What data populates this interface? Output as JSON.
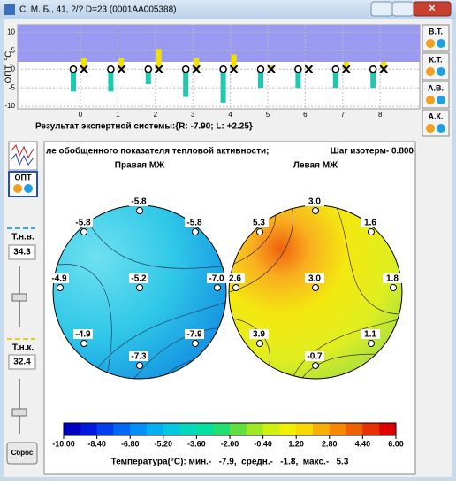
{
  "window": {
    "title": "С. М. Б., 41, ?/? D=23 (0001AA005388)"
  },
  "top_chart": {
    "type": "bar",
    "ylabel": "ОПТ, °C",
    "ylim": [
      -10.7,
      12
    ],
    "yticks": [
      10,
      5,
      0,
      -5,
      -10
    ],
    "categories": [
      "0",
      "1",
      "2",
      "3",
      "4",
      "5",
      "6",
      "7",
      "8"
    ],
    "series": [
      {
        "color": "#20c8b0",
        "values": [
          -6,
          -6,
          -4,
          -7.5,
          -9,
          -5,
          -5,
          -5,
          -5
        ]
      },
      {
        "color": "#f0e000",
        "values": [
          3,
          3,
          5.5,
          3,
          4,
          1,
          0.5,
          2,
          2
        ]
      }
    ]
  },
  "expert_result": "Результат экспертной системы:{R: -7.90; L: +2.25}",
  "side_buttons": [
    "В.Т.",
    "К.Т.",
    "А.В.",
    "А.К."
  ],
  "left_panel": {
    "opt_button": "ОПТ",
    "tnv_label": "Т.н.в.",
    "tnv_value": "34.3",
    "tnk_label": "Т.н.к.",
    "tnk_value": "32.4",
    "reset": "Сброс"
  },
  "map": {
    "heading": "ле обобщенного показателя тепловой активности;",
    "step": "Шаг изотерм- 0.800",
    "right_title": "Правая МЖ",
    "left_title": "Левая МЖ",
    "right_points": [
      "-5.8",
      "-5.8",
      "-5.8",
      "-4.9",
      "-5.2",
      "-7.0",
      "-4.9",
      "-7.9",
      "-7.3"
    ],
    "left_points": [
      "3.0",
      "5.3",
      "1.6",
      "2.6",
      "3.0",
      "1.8",
      "3.9",
      "1.1",
      "-0.7"
    ],
    "colorbar_ticks": [
      {
        "value": -10,
        "label": "-10.00"
      },
      {
        "value": -8.4,
        "label": "-8.40"
      },
      {
        "value": -6.8,
        "label": "-6.80"
      },
      {
        "value": -5.2,
        "label": "-5.20"
      },
      {
        "value": -3.6,
        "label": "-3.60"
      },
      {
        "value": -2,
        "label": "-2.00"
      },
      {
        "value": -0.4,
        "label": "-0.40"
      },
      {
        "value": 1.2,
        "label": "1.20"
      },
      {
        "value": 2.8,
        "label": "2.80"
      },
      {
        "value": 4.4,
        "label": "4.40"
      },
      {
        "value": 6,
        "label": "6.00"
      }
    ],
    "footer": "Температура(°C): мин.-   -7.9,  средн.-   -1.8,  макс.-   5.3"
  }
}
